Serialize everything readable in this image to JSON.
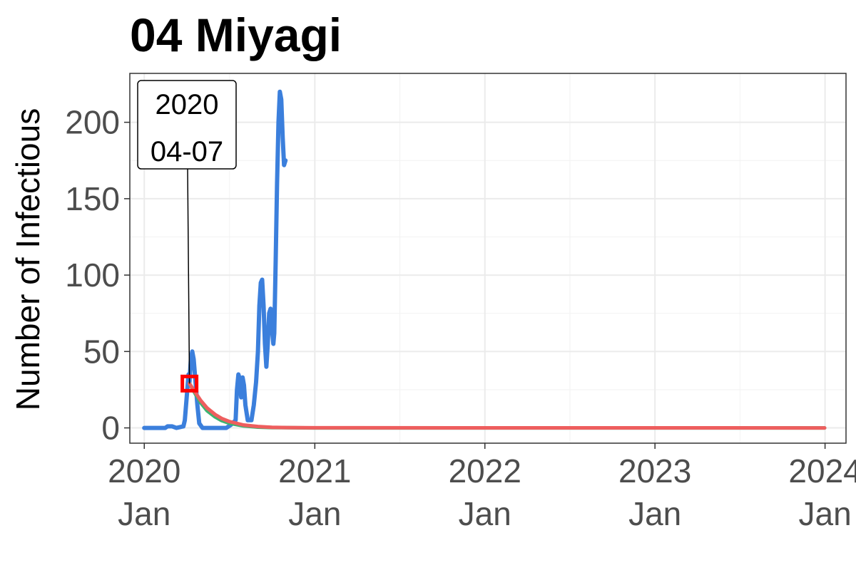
{
  "chart_data": {
    "type": "line",
    "title": "04 Miyagi",
    "xlabel": "",
    "ylabel": "Number of Infectious",
    "xlim": [
      "2019-12-01",
      "2024-02-15"
    ],
    "ylim": [
      -10,
      232
    ],
    "grid": true,
    "legend": "none",
    "x_ticks": [
      {
        "date": "2020-01-01",
        "line1": "2020",
        "line2": "Jan"
      },
      {
        "date": "2021-01-01",
        "line1": "2021",
        "line2": "Jan"
      },
      {
        "date": "2022-01-01",
        "line1": "2022",
        "line2": "Jan"
      },
      {
        "date": "2023-01-01",
        "line1": "2023",
        "line2": "Jan"
      },
      {
        "date": "2024-01-01",
        "line1": "2024",
        "line2": "Jan"
      }
    ],
    "y_ticks": [
      0,
      50,
      100,
      150,
      200
    ],
    "series": [
      {
        "color": "#3b7fdc",
        "points": [
          [
            "2020-01-01",
            0
          ],
          [
            "2020-02-15",
            0
          ],
          [
            "2020-02-20",
            1
          ],
          [
            "2020-03-01",
            1
          ],
          [
            "2020-03-10",
            0
          ],
          [
            "2020-03-25",
            1
          ],
          [
            "2020-03-28",
            5
          ],
          [
            "2020-04-01",
            20
          ],
          [
            "2020-04-05",
            35
          ],
          [
            "2020-04-07",
            30
          ],
          [
            "2020-04-10",
            45
          ],
          [
            "2020-04-13",
            50
          ],
          [
            "2020-04-16",
            45
          ],
          [
            "2020-04-20",
            30
          ],
          [
            "2020-04-24",
            15
          ],
          [
            "2020-04-28",
            3
          ],
          [
            "2020-05-05",
            0
          ],
          [
            "2020-06-25",
            0
          ],
          [
            "2020-07-05",
            2
          ],
          [
            "2020-07-15",
            5
          ],
          [
            "2020-07-18",
            25
          ],
          [
            "2020-07-21",
            35
          ],
          [
            "2020-07-24",
            32
          ],
          [
            "2020-07-27",
            20
          ],
          [
            "2020-07-30",
            33
          ],
          [
            "2020-08-02",
            28
          ],
          [
            "2020-08-05",
            15
          ],
          [
            "2020-08-10",
            5
          ],
          [
            "2020-08-18",
            5
          ],
          [
            "2020-08-23",
            15
          ],
          [
            "2020-08-28",
            30
          ],
          [
            "2020-09-01",
            50
          ],
          [
            "2020-09-04",
            80
          ],
          [
            "2020-09-07",
            95
          ],
          [
            "2020-09-10",
            97
          ],
          [
            "2020-09-13",
            80
          ],
          [
            "2020-09-16",
            55
          ],
          [
            "2020-09-19",
            40
          ],
          [
            "2020-09-22",
            55
          ],
          [
            "2020-09-25",
            75
          ],
          [
            "2020-09-28",
            78
          ],
          [
            "2020-10-01",
            65
          ],
          [
            "2020-10-04",
            55
          ],
          [
            "2020-10-06",
            62
          ],
          [
            "2020-10-09",
            110
          ],
          [
            "2020-10-12",
            160
          ],
          [
            "2020-10-15",
            200
          ],
          [
            "2020-10-18",
            220
          ],
          [
            "2020-10-21",
            215
          ],
          [
            "2020-10-24",
            190
          ],
          [
            "2020-10-27",
            172
          ],
          [
            "2020-10-30",
            175
          ]
        ]
      },
      {
        "color": "#3cb371",
        "points": [
          [
            "2020-04-07",
            29
          ],
          [
            "2020-04-20",
            22
          ],
          [
            "2020-05-01",
            16.5
          ],
          [
            "2020-05-15",
            11.2
          ],
          [
            "2020-06-01",
            7.2
          ],
          [
            "2020-06-15",
            4.8
          ],
          [
            "2020-07-01",
            3.1
          ],
          [
            "2020-08-01",
            1.3
          ],
          [
            "2020-09-01",
            0.5
          ],
          [
            "2020-10-01",
            0.2
          ],
          [
            "2020-11-01",
            0.1
          ],
          [
            "2021-01-01",
            0
          ],
          [
            "2023-12-31",
            0
          ]
        ]
      },
      {
        "color": "#ee5e5e",
        "points": [
          [
            "2020-04-07",
            29
          ],
          [
            "2020-04-20",
            23
          ],
          [
            "2020-05-01",
            18
          ],
          [
            "2020-05-15",
            13
          ],
          [
            "2020-06-01",
            8.8
          ],
          [
            "2020-06-15",
            6.2
          ],
          [
            "2020-07-01",
            4.2
          ],
          [
            "2020-08-01",
            1.9
          ],
          [
            "2020-09-01",
            0.9
          ],
          [
            "2020-10-01",
            0.4
          ],
          [
            "2020-11-01",
            0.2
          ],
          [
            "2021-01-01",
            0.05
          ],
          [
            "2023-12-31",
            0
          ]
        ]
      }
    ],
    "annotation": {
      "line1": "2020",
      "line2": "04-07",
      "date": "2020-04-07",
      "value": 29,
      "marker_color": "#ff0000"
    }
  }
}
